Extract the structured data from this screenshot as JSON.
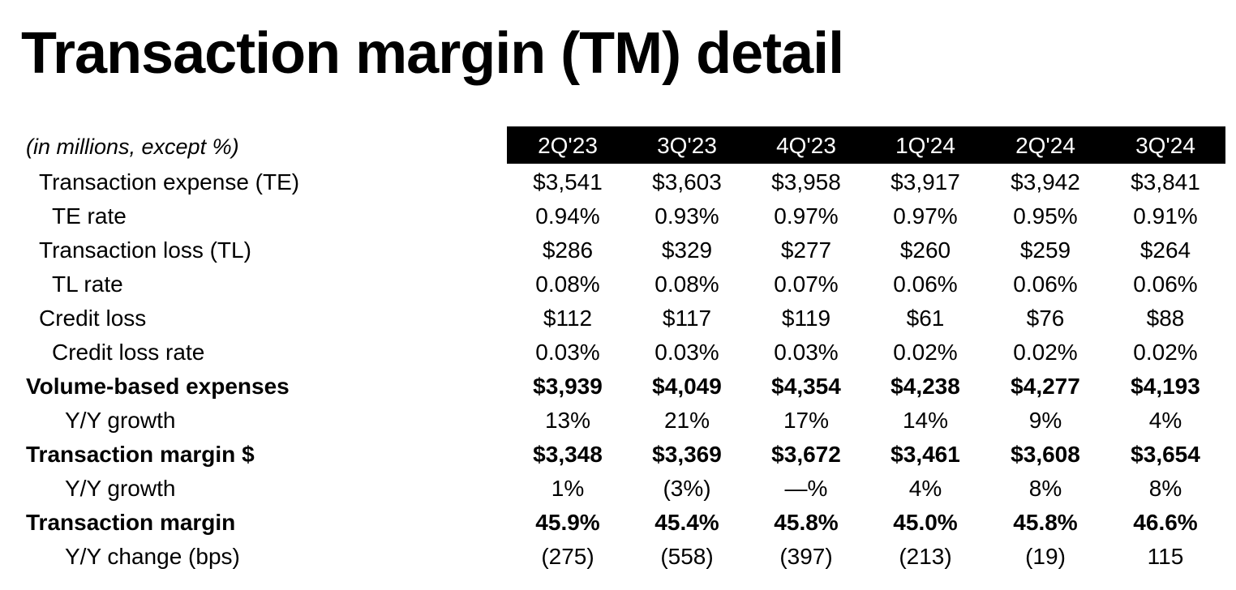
{
  "title": "Transaction margin (TM) detail",
  "table": {
    "subtitle": "(in millions, except %)",
    "periods": [
      "2Q'23",
      "3Q'23",
      "4Q'23",
      "1Q'24",
      "2Q'24",
      "3Q'24"
    ],
    "rows": [
      {
        "label": "Transaction expense (TE)",
        "values": [
          "$3,541",
          "$3,603",
          "$3,958",
          "$3,917",
          "$3,942",
          "$3,841"
        ],
        "bold": false,
        "indent": 1
      },
      {
        "label": "TE rate",
        "values": [
          "0.94%",
          "0.93%",
          "0.97%",
          "0.97%",
          "0.95%",
          "0.91%"
        ],
        "bold": false,
        "indent": 2
      },
      {
        "label": "Transaction loss (TL)",
        "values": [
          "$286",
          "$329",
          "$277",
          "$260",
          "$259",
          "$264"
        ],
        "bold": false,
        "indent": 1
      },
      {
        "label": "TL rate",
        "values": [
          "0.08%",
          "0.08%",
          "0.07%",
          "0.06%",
          "0.06%",
          "0.06%"
        ],
        "bold": false,
        "indent": 2
      },
      {
        "label": "Credit loss",
        "values": [
          "$112",
          "$117",
          "$119",
          "$61",
          "$76",
          "$88"
        ],
        "bold": false,
        "indent": 1
      },
      {
        "label": "Credit loss rate",
        "values": [
          "0.03%",
          "0.03%",
          "0.03%",
          "0.02%",
          "0.02%",
          "0.02%"
        ],
        "bold": false,
        "indent": 2
      },
      {
        "label": "Volume-based expenses",
        "values": [
          "$3,939",
          "$4,049",
          "$4,354",
          "$4,238",
          "$4,277",
          "$4,193"
        ],
        "bold": true,
        "indent": 0
      },
      {
        "label": "Y/Y growth",
        "values": [
          "13%",
          "21%",
          "17%",
          "14%",
          "9%",
          "4%"
        ],
        "bold": false,
        "indent": 3
      },
      {
        "label": "Transaction margin $",
        "values": [
          "$3,348",
          "$3,369",
          "$3,672",
          "$3,461",
          "$3,608",
          "$3,654"
        ],
        "bold": true,
        "indent": 0
      },
      {
        "label": "Y/Y growth",
        "values": [
          "1%",
          "(3%)",
          "—%",
          "4%",
          "8%",
          "8%"
        ],
        "bold": false,
        "indent": 3
      },
      {
        "label": "Transaction margin",
        "values": [
          "45.9%",
          "45.4%",
          "45.8%",
          "45.0%",
          "45.8%",
          "46.6%"
        ],
        "bold": true,
        "indent": 0
      },
      {
        "label": "Y/Y change (bps)",
        "values": [
          "(275)",
          "(558)",
          "(397)",
          "(213)",
          "(19)",
          "115"
        ],
        "bold": false,
        "indent": 3
      }
    ]
  }
}
